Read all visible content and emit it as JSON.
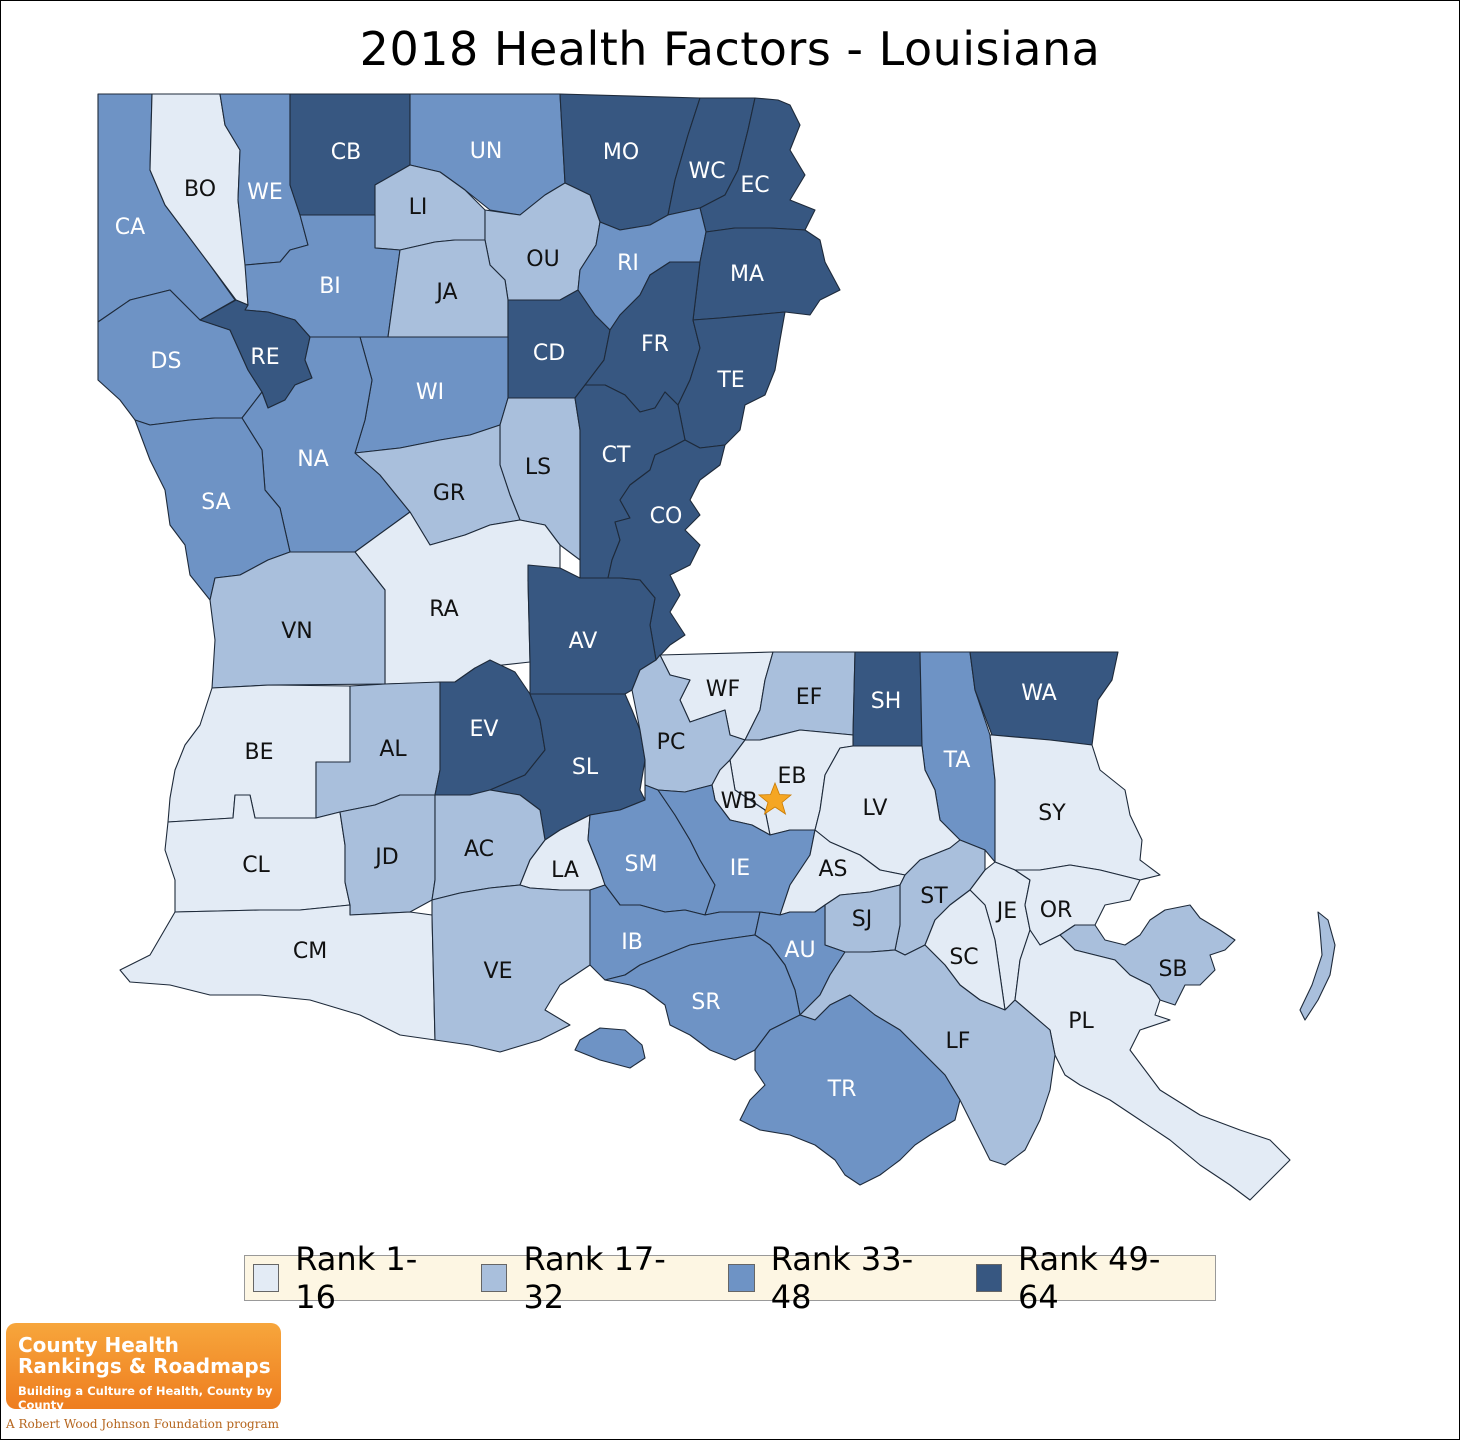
{
  "title": "2018 Health Factors - Louisiana",
  "legend": [
    {
      "label": "Rank 1-16",
      "color": "#e3ebf5"
    },
    {
      "label": "Rank 17-32",
      "color": "#a9bfdc"
    },
    {
      "label": "Rank 33-48",
      "color": "#6e93c5"
    },
    {
      "label": "Rank 49-64",
      "color": "#375781"
    }
  ],
  "parishes": {
    "CA": {
      "label": "CA",
      "rank_group": "Rank 33-48"
    },
    "BO": {
      "label": "BO",
      "rank_group": "Rank 1-16"
    },
    "WE": {
      "label": "WE",
      "rank_group": "Rank 33-48"
    },
    "CB": {
      "label": "CB",
      "rank_group": "Rank 49-64"
    },
    "UN": {
      "label": "UN",
      "rank_group": "Rank 33-48"
    },
    "MO": {
      "label": "MO",
      "rank_group": "Rank 49-64"
    },
    "WC": {
      "label": "WC",
      "rank_group": "Rank 49-64"
    },
    "EC": {
      "label": "EC",
      "rank_group": "Rank 49-64"
    },
    "LI": {
      "label": "LI",
      "rank_group": "Rank 17-32"
    },
    "OU": {
      "label": "OU",
      "rank_group": "Rank 17-32"
    },
    "RI": {
      "label": "RI",
      "rank_group": "Rank 33-48"
    },
    "MA": {
      "label": "MA",
      "rank_group": "Rank 49-64"
    },
    "BI": {
      "label": "BI",
      "rank_group": "Rank 33-48"
    },
    "JA": {
      "label": "JA",
      "rank_group": "Rank 17-32"
    },
    "DS": {
      "label": "DS",
      "rank_group": "Rank 33-48"
    },
    "RE": {
      "label": "RE",
      "rank_group": "Rank 49-64"
    },
    "CD": {
      "label": "CD",
      "rank_group": "Rank 49-64"
    },
    "FR": {
      "label": "FR",
      "rank_group": "Rank 49-64"
    },
    "TE": {
      "label": "TE",
      "rank_group": "Rank 49-64"
    },
    "WI": {
      "label": "WI",
      "rank_group": "Rank 33-48"
    },
    "NA": {
      "label": "NA",
      "rank_group": "Rank 33-48"
    },
    "LS": {
      "label": "LS",
      "rank_group": "Rank 17-32"
    },
    "CT": {
      "label": "CT",
      "rank_group": "Rank 49-64"
    },
    "SA": {
      "label": "SA",
      "rank_group": "Rank 33-48"
    },
    "GR": {
      "label": "GR",
      "rank_group": "Rank 17-32"
    },
    "CO": {
      "label": "CO",
      "rank_group": "Rank 49-64"
    },
    "RA": {
      "label": "RA",
      "rank_group": "Rank 1-16"
    },
    "VN": {
      "label": "VN",
      "rank_group": "Rank 17-32"
    },
    "AV": {
      "label": "AV",
      "rank_group": "Rank 49-64"
    },
    "WF": {
      "label": "WF",
      "rank_group": "Rank 1-16"
    },
    "EF": {
      "label": "EF",
      "rank_group": "Rank 17-32"
    },
    "SH": {
      "label": "SH",
      "rank_group": "Rank 49-64"
    },
    "WA": {
      "label": "WA",
      "rank_group": "Rank 49-64"
    },
    "BE": {
      "label": "BE",
      "rank_group": "Rank 1-16"
    },
    "AL": {
      "label": "AL",
      "rank_group": "Rank 17-32"
    },
    "EV": {
      "label": "EV",
      "rank_group": "Rank 49-64"
    },
    "PC": {
      "label": "PC",
      "rank_group": "Rank 17-32"
    },
    "SL": {
      "label": "SL",
      "rank_group": "Rank 49-64"
    },
    "EB": {
      "label": "EB",
      "rank_group": "Rank 1-16"
    },
    "TA": {
      "label": "TA",
      "rank_group": "Rank 33-48"
    },
    "WB": {
      "label": "WB",
      "rank_group": "Rank 1-16"
    },
    "LV": {
      "label": "LV",
      "rank_group": "Rank 1-16"
    },
    "SY": {
      "label": "SY",
      "rank_group": "Rank 1-16"
    },
    "CL": {
      "label": "CL",
      "rank_group": "Rank 1-16"
    },
    "JD": {
      "label": "JD",
      "rank_group": "Rank 17-32"
    },
    "AC": {
      "label": "AC",
      "rank_group": "Rank 17-32"
    },
    "LA": {
      "label": "LA",
      "rank_group": "Rank 1-16"
    },
    "SM": {
      "label": "SM",
      "rank_group": "Rank 33-48"
    },
    "IE": {
      "label": "IE",
      "rank_group": "Rank 33-48"
    },
    "AS": {
      "label": "AS",
      "rank_group": "Rank 1-16"
    },
    "ST": {
      "label": "ST",
      "rank_group": "Rank 17-32"
    },
    "JE": {
      "label": "JE",
      "rank_group": "Rank 1-16"
    },
    "OR": {
      "label": "OR",
      "rank_group": "Rank 1-16"
    },
    "SJ": {
      "label": "SJ",
      "rank_group": "Rank 17-32"
    },
    "CM": {
      "label": "CM",
      "rank_group": "Rank 1-16"
    },
    "VE": {
      "label": "VE",
      "rank_group": "Rank 17-32"
    },
    "IB": {
      "label": "IB",
      "rank_group": "Rank 33-48"
    },
    "AU": {
      "label": "AU",
      "rank_group": "Rank 33-48"
    },
    "SC": {
      "label": "SC",
      "rank_group": "Rank 1-16"
    },
    "SB": {
      "label": "SB",
      "rank_group": "Rank 17-32"
    },
    "SR": {
      "label": "SR",
      "rank_group": "Rank 33-48"
    },
    "PL": {
      "label": "PL",
      "rank_group": "Rank 1-16"
    },
    "LF": {
      "label": "LF",
      "rank_group": "Rank 17-32"
    },
    "TR": {
      "label": "TR",
      "rank_group": "Rank 33-48"
    }
  },
  "marker": {
    "icon": "star-icon",
    "color": "#f5a623"
  },
  "logo": {
    "line1": "County Health",
    "line2": "Rankings & Roadmaps",
    "tagline": "Building a Culture of Health, County by County"
  },
  "program": "A Robert Wood Johnson Foundation program"
}
